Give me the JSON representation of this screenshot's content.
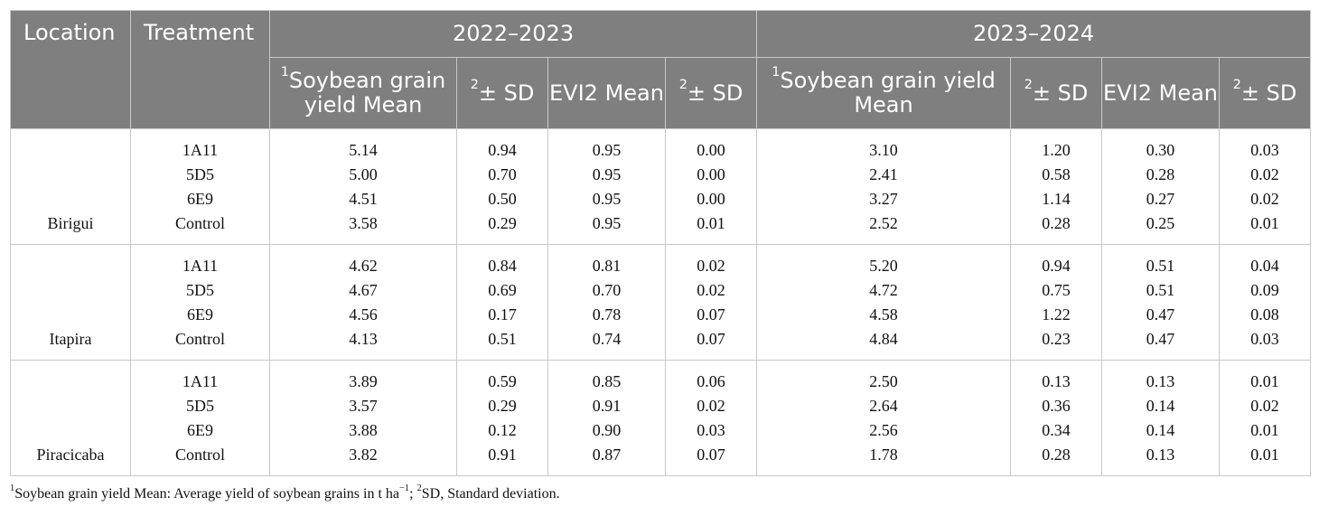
{
  "header": {
    "location": "Location",
    "treatment": "Treatment",
    "year1": "2022–2023",
    "year2": "2023–2024",
    "col_yield_sup": "1",
    "col_yield": "Soybean grain yield Mean",
    "col_sd_sup": "2",
    "col_sd": "± SD",
    "col_evi": "EVI2 Mean"
  },
  "groups": [
    {
      "location": "Birigui",
      "rows": [
        [
          "1A11",
          "5.14",
          "0.94",
          "0.95",
          "0.00",
          "3.10",
          "1.20",
          "0.30",
          "0.03"
        ],
        [
          "5D5",
          "5.00",
          "0.70",
          "0.95",
          "0.00",
          "2.41",
          "0.58",
          "0.28",
          "0.02"
        ],
        [
          "6E9",
          "4.51",
          "0.50",
          "0.95",
          "0.00",
          "3.27",
          "1.14",
          "0.27",
          "0.02"
        ],
        [
          "Control",
          "3.58",
          "0.29",
          "0.95",
          "0.01",
          "2.52",
          "0.28",
          "0.25",
          "0.01"
        ]
      ]
    },
    {
      "location": "Itapira",
      "rows": [
        [
          "1A11",
          "4.62",
          "0.84",
          "0.81",
          "0.02",
          "5.20",
          "0.94",
          "0.51",
          "0.04"
        ],
        [
          "5D5",
          "4.67",
          "0.69",
          "0.70",
          "0.02",
          "4.72",
          "0.75",
          "0.51",
          "0.09"
        ],
        [
          "6E9",
          "4.56",
          "0.17",
          "0.78",
          "0.07",
          "4.58",
          "1.22",
          "0.47",
          "0.08"
        ],
        [
          "Control",
          "4.13",
          "0.51",
          "0.74",
          "0.07",
          "4.84",
          "0.23",
          "0.47",
          "0.03"
        ]
      ]
    },
    {
      "location": "Piracicaba",
      "rows": [
        [
          "1A11",
          "3.89",
          "0.59",
          "0.85",
          "0.06",
          "2.50",
          "0.13",
          "0.13",
          "0.01"
        ],
        [
          "5D5",
          "3.57",
          "0.29",
          "0.91",
          "0.02",
          "2.64",
          "0.36",
          "0.14",
          "0.02"
        ],
        [
          "6E9",
          "3.88",
          "0.12",
          "0.90",
          "0.03",
          "2.56",
          "0.34",
          "0.14",
          "0.01"
        ],
        [
          "Control",
          "3.82",
          "0.91",
          "0.87",
          "0.07",
          "1.78",
          "0.28",
          "0.13",
          "0.01"
        ]
      ]
    }
  ],
  "footnote": {
    "sup1": "1",
    "part1": "Soybean grain yield Mean: Average yield of soybean grains in t ha",
    "unit_sup": "−1",
    "part2": "; ",
    "sup2": "2",
    "part3": "SD, Standard deviation."
  }
}
